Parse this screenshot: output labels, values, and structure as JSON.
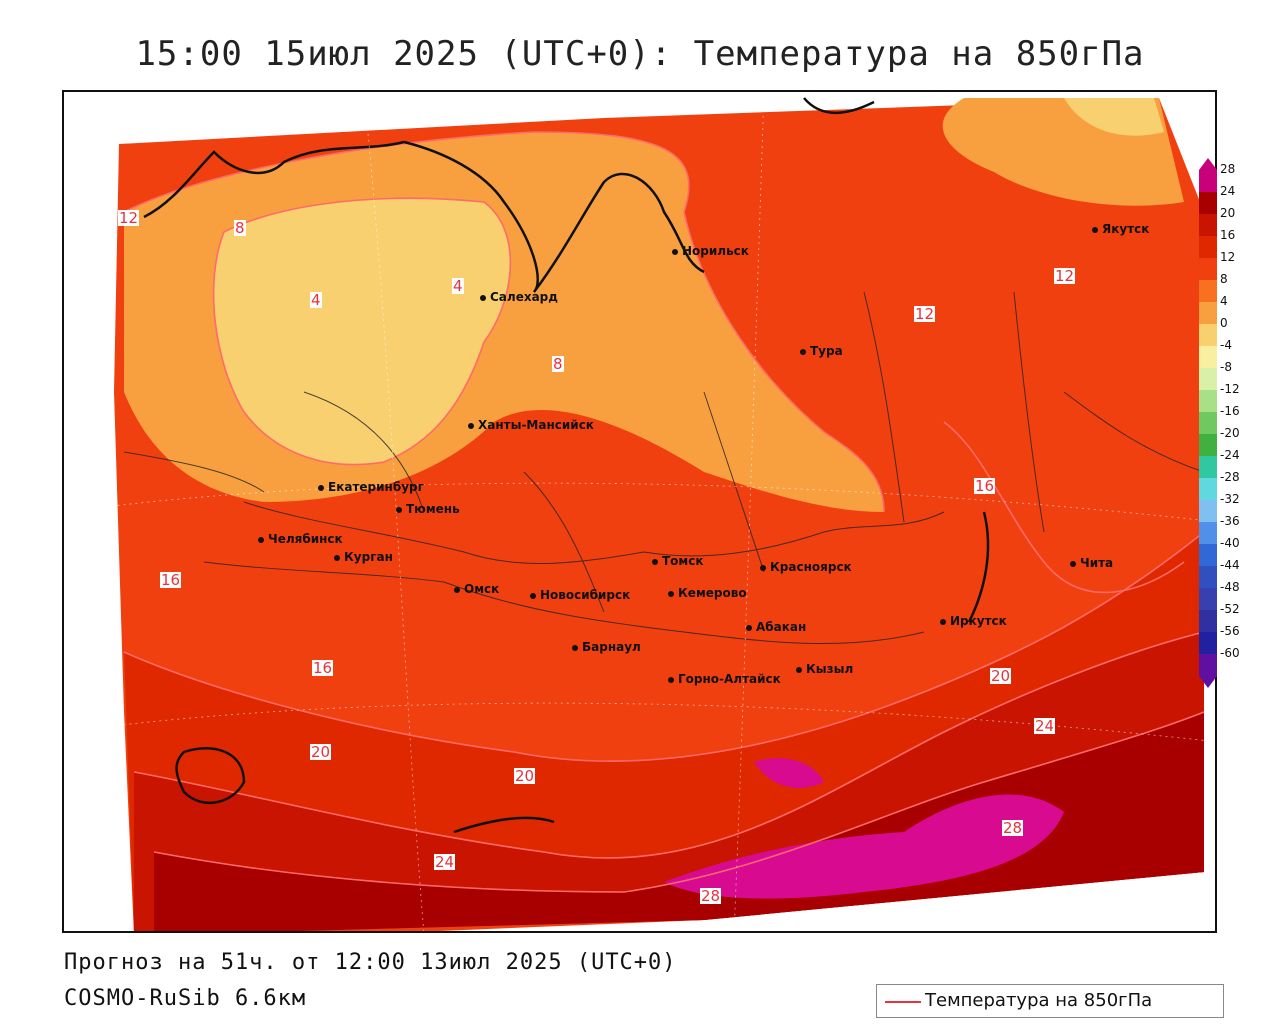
{
  "title": "15:00 15июл 2025 (UTC+0): Температура на 850гПа",
  "forecast_line": "Прогноз на 51ч. от 12:00 13июл 2025 (UTC+0)",
  "model_line": "COSMO-RuSib 6.6км",
  "legend": {
    "label": "Температура на 850гПа",
    "line_color": "#e8323c"
  },
  "colorbar": {
    "ticks": [
      "28",
      "24",
      "20",
      "16",
      "12",
      "8",
      "4",
      "0",
      "-4",
      "-8",
      "-12",
      "-16",
      "-20",
      "-24",
      "-28",
      "-32",
      "-36",
      "-40",
      "-44",
      "-48",
      "-52",
      "-56",
      "-60"
    ],
    "colors": [
      "#c8007a",
      "#a80000",
      "#c81400",
      "#e02800",
      "#f04010",
      "#f87020",
      "#f8a040",
      "#f8d070",
      "#f8f0a0",
      "#d8f0a8",
      "#a8e088",
      "#70c860",
      "#40b040",
      "#30c8a0",
      "#60d8e0",
      "#80c0f0",
      "#5090e8",
      "#3068d8",
      "#3050c0",
      "#3840b0",
      "#3030a0",
      "#2020a0",
      "#6010a0"
    ]
  },
  "cities": [
    {
      "name": "Норильск"
    },
    {
      "name": "Якутск"
    },
    {
      "name": "Салехард"
    },
    {
      "name": "Тура"
    },
    {
      "name": "Ханты-Мансийск"
    },
    {
      "name": "Екатеринбург"
    },
    {
      "name": "Тюмень"
    },
    {
      "name": "Челябинск"
    },
    {
      "name": "Курган"
    },
    {
      "name": "Омск"
    },
    {
      "name": "Новосибирск"
    },
    {
      "name": "Томск"
    },
    {
      "name": "Кемерово"
    },
    {
      "name": "Красноярск"
    },
    {
      "name": "Абакан"
    },
    {
      "name": "Барнаул"
    },
    {
      "name": "Горно-Алтайск"
    },
    {
      "name": "Кызыл"
    },
    {
      "name": "Иркутск"
    },
    {
      "name": "Чита"
    }
  ],
  "contour_labels": [
    "4",
    "4",
    "8",
    "8",
    "12",
    "12",
    "16",
    "16",
    "20",
    "20",
    "24",
    "24",
    "28",
    "28"
  ]
}
